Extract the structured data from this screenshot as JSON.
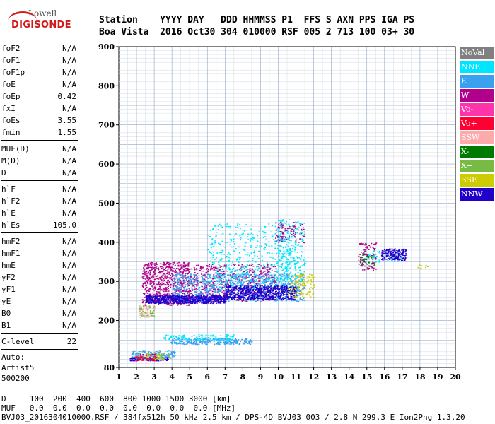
{
  "logo": {
    "line1": "Lowell",
    "line2": "DIGISONDE"
  },
  "header": {
    "line1": "Station    YYYY DAY   DDD HHMMSS P1  FFS S AXN PPS IGA PS",
    "line2": "Boa Vista  2016 Oct30 304 010000 RSF 005 2 713 100 03+ 30"
  },
  "params": {
    "group1": [
      {
        "k": "foF2",
        "v": "N/A"
      },
      {
        "k": "foF1",
        "v": "N/A"
      },
      {
        "k": "foF1p",
        "v": "N/A"
      },
      {
        "k": "foE",
        "v": "N/A"
      },
      {
        "k": "foEp",
        "v": "0.42"
      },
      {
        "k": "fxI",
        "v": "N/A"
      },
      {
        "k": "foEs",
        "v": "3.55"
      },
      {
        "k": "fmin",
        "v": "1.55"
      }
    ],
    "group2": [
      {
        "k": "MUF(D)",
        "v": "N/A"
      },
      {
        "k": "M(D)",
        "v": "N/A"
      },
      {
        "k": "D",
        "v": "N/A"
      }
    ],
    "group3": [
      {
        "k": "h`F",
        "v": "N/A"
      },
      {
        "k": "h`F2",
        "v": "N/A"
      },
      {
        "k": "h`E",
        "v": "N/A"
      },
      {
        "k": "h`Es",
        "v": "105.0"
      }
    ],
    "group4": [
      {
        "k": "hmF2",
        "v": "N/A"
      },
      {
        "k": "hmF1",
        "v": "N/A"
      },
      {
        "k": "hmE",
        "v": "N/A"
      },
      {
        "k": "yF2",
        "v": "N/A"
      },
      {
        "k": "yF1",
        "v": "N/A"
      },
      {
        "k": "yE",
        "v": "N/A"
      },
      {
        "k": "B0",
        "v": "N/A"
      },
      {
        "k": "B1",
        "v": "N/A"
      }
    ],
    "clevel": {
      "k": "C-level",
      "v": "22"
    },
    "auto": [
      "Auto:",
      "Artist5",
      "500200"
    ]
  },
  "legend": [
    {
      "label": "NoVal",
      "color": "#808080"
    },
    {
      "label": "NNE",
      "color": "#00e5ff"
    },
    {
      "label": "E",
      "color": "#3aa0f0"
    },
    {
      "label": "W",
      "color": "#b0008c"
    },
    {
      "label": "Vo-",
      "color": "#ff33aa"
    },
    {
      "label": "Vo+",
      "color": "#ff0033"
    },
    {
      "label": "SSW",
      "color": "#ffaaaa"
    },
    {
      "label": "X-",
      "color": "#007a00"
    },
    {
      "label": "X+",
      "color": "#77bb44"
    },
    {
      "label": "SSE",
      "color": "#cccc00"
    },
    {
      "label": "NNW",
      "color": "#2200cc"
    }
  ],
  "footer": {
    "line1": "D     100  200  400  600  800 1000 1500 3000 [km]",
    "line2": "MUF   0.0  0.0  0.0  0.0  0.0  0.0  0.0  0.0 [MHz]",
    "line3": "BVJ03_2016304010000.RSF / 384fx512h 50 kHz 2.5 km / DPS-4D BVJ03 003 / 2.8 N 299.3 E Ion2Png 1.3.20"
  },
  "chart_data": {
    "type": "scatter",
    "xlim": [
      1,
      20
    ],
    "ylim": [
      80,
      900
    ],
    "xticks": [
      1,
      2,
      3,
      4,
      5,
      6,
      7,
      8,
      9,
      10,
      11,
      12,
      13,
      14,
      15,
      16,
      17,
      18,
      19,
      20
    ],
    "yticks": [
      80,
      200,
      300,
      400,
      500,
      600,
      700,
      800,
      900
    ],
    "grid": true,
    "legend_position": "right",
    "clusters": [
      {
        "name": "E",
        "x": [
          3.9,
          8.5
        ],
        "y": [
          140,
          155
        ],
        "n": 260
      },
      {
        "name": "NNE",
        "x": [
          3.5,
          7.5
        ],
        "y": [
          150,
          165
        ],
        "n": 120
      },
      {
        "name": "NNW",
        "x": [
          1.6,
          3.8
        ],
        "y": [
          98,
          108
        ],
        "n": 120
      },
      {
        "name": "E",
        "x": [
          1.7,
          4.2
        ],
        "y": [
          105,
          125
        ],
        "n": 160
      },
      {
        "name": "SSE",
        "x": [
          2.0,
          3.5
        ],
        "y": [
          100,
          118
        ],
        "n": 45
      },
      {
        "name": "X+",
        "x": [
          2.2,
          3.8
        ],
        "y": [
          100,
          118
        ],
        "n": 40
      },
      {
        "name": "Vo+",
        "x": [
          1.8,
          3.0
        ],
        "y": [
          98,
          110
        ],
        "n": 35
      },
      {
        "name": "W",
        "x": [
          2.0,
          3.2
        ],
        "y": [
          100,
          115
        ],
        "n": 30
      },
      {
        "name": "X+",
        "x": [
          2.1,
          3.0
        ],
        "y": [
          210,
          240
        ],
        "n": 50
      },
      {
        "name": "SSW",
        "x": [
          2.1,
          3.0
        ],
        "y": [
          210,
          240
        ],
        "n": 40
      },
      {
        "name": "W",
        "x": [
          2.3,
          5.0
        ],
        "y": [
          240,
          350
        ],
        "n": 700
      },
      {
        "name": "W",
        "x": [
          5.0,
          9.8
        ],
        "y": [
          250,
          345
        ],
        "n": 600
      },
      {
        "name": "E",
        "x": [
          4.0,
          11.5
        ],
        "y": [
          250,
          320
        ],
        "n": 900
      },
      {
        "name": "NNE",
        "x": [
          6.0,
          11.0
        ],
        "y": [
          280,
          450
        ],
        "n": 500
      },
      {
        "name": "NNW",
        "x": [
          2.5,
          7.0
        ],
        "y": [
          245,
          265
        ],
        "n": 700
      },
      {
        "name": "NNW",
        "x": [
          7.0,
          11.0
        ],
        "y": [
          255,
          290
        ],
        "n": 600
      },
      {
        "name": "NNE",
        "x": [
          9.8,
          11.5
        ],
        "y": [
          300,
          460
        ],
        "n": 250
      },
      {
        "name": "SSE",
        "x": [
          10.5,
          12.0
        ],
        "y": [
          260,
          320
        ],
        "n": 120
      },
      {
        "name": "W",
        "x": [
          9.8,
          11.5
        ],
        "y": [
          400,
          455
        ],
        "n": 80
      },
      {
        "name": "W",
        "x": [
          14.5,
          15.5
        ],
        "y": [
          330,
          400
        ],
        "n": 90
      },
      {
        "name": "NNW",
        "x": [
          15.8,
          17.2
        ],
        "y": [
          355,
          385
        ],
        "n": 180
      },
      {
        "name": "X-",
        "x": [
          14.6,
          15.4
        ],
        "y": [
          340,
          370
        ],
        "n": 40
      },
      {
        "name": "NNE",
        "x": [
          14.8,
          17.0
        ],
        "y": [
          350,
          380
        ],
        "n": 40
      },
      {
        "name": "SSE",
        "x": [
          17.8,
          18.5
        ],
        "y": [
          335,
          345
        ],
        "n": 10
      }
    ]
  }
}
